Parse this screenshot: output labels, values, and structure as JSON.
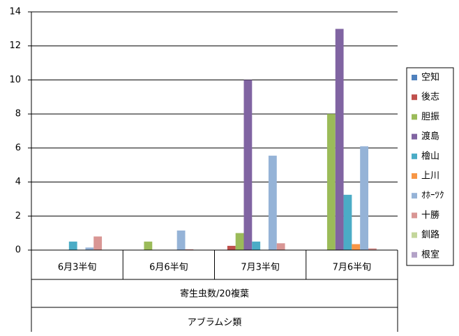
{
  "chart_data": {
    "type": "bar",
    "categories": [
      "6月3半旬",
      "6月6半旬",
      "7月3半旬",
      "7月6半旬"
    ],
    "category_levels": [
      "寄生虫数/20複葉",
      "アブラムシ類"
    ],
    "series": [
      {
        "name": "空知",
        "color": "#4F81BD",
        "values": [
          0,
          0,
          0,
          0
        ]
      },
      {
        "name": "後志",
        "color": "#C0504D",
        "values": [
          0,
          0,
          0.25,
          0
        ]
      },
      {
        "name": "胆振",
        "color": "#9BBB59",
        "values": [
          0,
          0.5,
          1.0,
          8
        ]
      },
      {
        "name": "渡島",
        "color": "#8064A2",
        "values": [
          0,
          0,
          10,
          13
        ]
      },
      {
        "name": "檜山",
        "color": "#4BACC6",
        "values": [
          0.5,
          0,
          0.5,
          3.25
        ]
      },
      {
        "name": "上川",
        "color": "#F79646",
        "values": [
          0,
          0,
          0,
          0.35
        ]
      },
      {
        "name": "ｵﾎｰﾂｸ",
        "color": "#95B3D7",
        "values": [
          0.15,
          1.15,
          5.55,
          6.1
        ]
      },
      {
        "name": "十勝",
        "color": "#D99694",
        "values": [
          0.8,
          0.05,
          0.4,
          0.1
        ]
      },
      {
        "name": "釧路",
        "color": "#C3D69B",
        "values": [
          0,
          0,
          0,
          0
        ]
      },
      {
        "name": "根室",
        "color": "#B3A2C7",
        "values": [
          0,
          0,
          0,
          0
        ]
      }
    ],
    "ylim": [
      0,
      14
    ],
    "yticks": [
      0,
      2,
      4,
      6,
      8,
      10,
      12,
      14
    ],
    "grid": true,
    "legend": "right"
  }
}
